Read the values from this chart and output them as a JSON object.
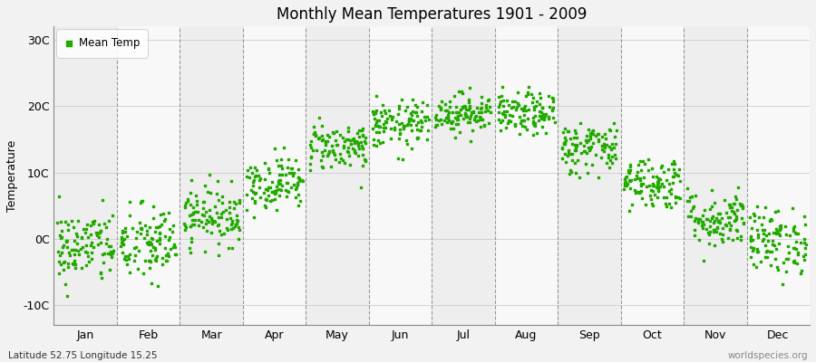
{
  "title": "Monthly Mean Temperatures 1901 - 2009",
  "ylabel": "Temperature",
  "xlabel_labels": [
    "Jan",
    "Feb",
    "Mar",
    "Apr",
    "May",
    "Jun",
    "Jul",
    "Aug",
    "Sep",
    "Oct",
    "Nov",
    "Dec"
  ],
  "ytick_labels": [
    "-10C",
    "0C",
    "10C",
    "20C",
    "30C"
  ],
  "ytick_values": [
    -10,
    0,
    10,
    20,
    30
  ],
  "ylim": [
    -13,
    32
  ],
  "legend_label": "Mean Temp",
  "dot_color": "#22aa00",
  "dot_size": 2.5,
  "background_color": "#f2f2f2",
  "band_colors": [
    "#eeeeee",
    "#f8f8f8"
  ],
  "dashed_color": "#999999",
  "grid_color": "#cccccc",
  "subtitle": "Latitude 52.75 Longitude 15.25",
  "watermark": "worldspecies.org",
  "monthly_means": [
    -1.2,
    -0.8,
    3.5,
    8.5,
    14.0,
    17.2,
    19.0,
    18.8,
    13.8,
    8.5,
    3.0,
    -0.3
  ],
  "monthly_stds": [
    2.8,
    3.0,
    2.2,
    2.0,
    1.8,
    1.8,
    1.5,
    1.6,
    2.0,
    2.0,
    2.2,
    2.5
  ],
  "n_years": 109
}
